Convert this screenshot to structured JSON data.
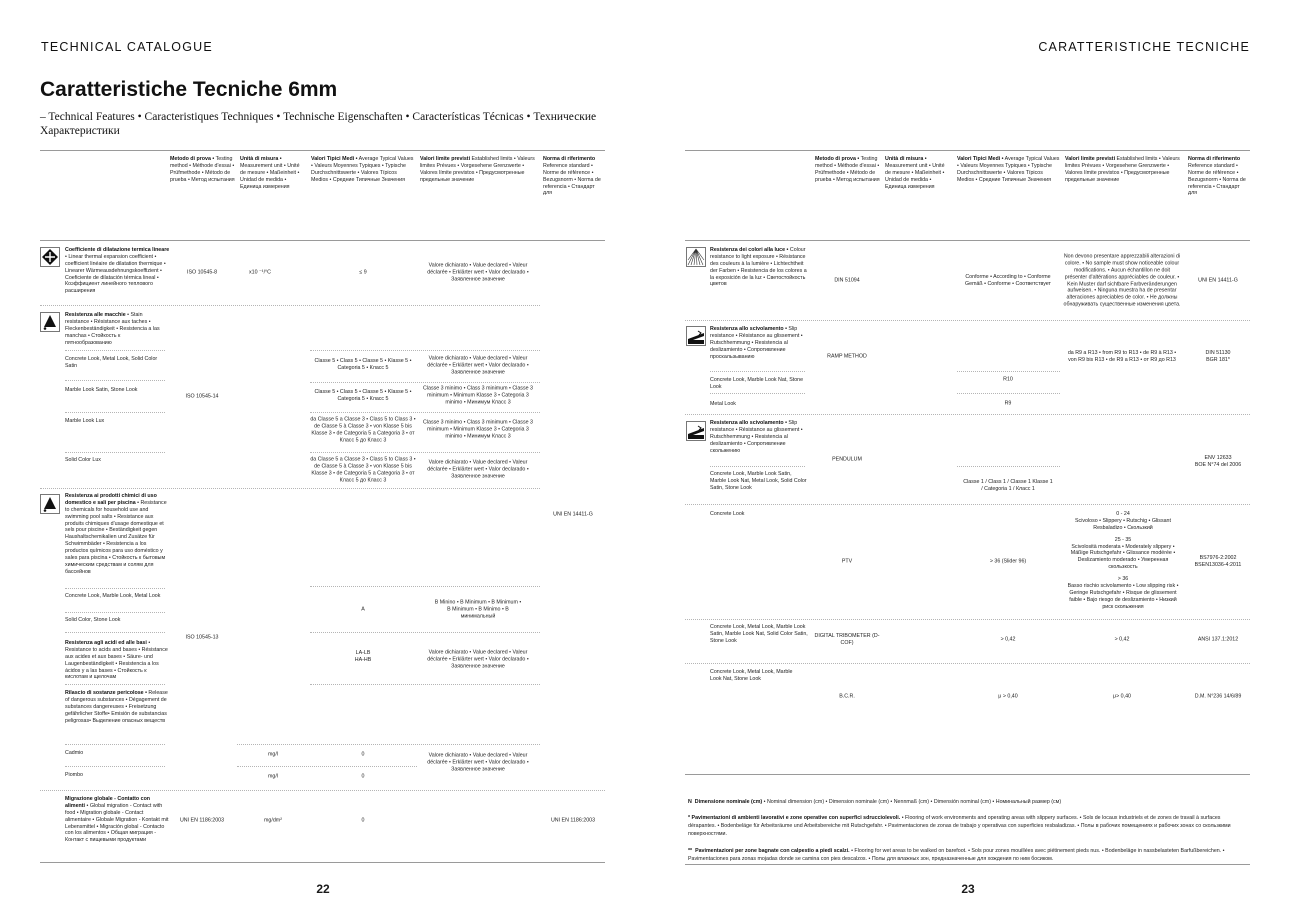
{
  "running": {
    "left": "TECHNICAL CATALOGUE",
    "right": "CARATTERISTICHE TECNICHE"
  },
  "title": "Caratteristiche Tecniche 6mm",
  "subtitle": "– Technical Features • Caracteristiques Techniques • Technische Eigenschaften • Características Técnicas • Технические Характеристики",
  "header": {
    "method": {
      "b": "Metodo di prova •",
      "t": " Testing method • Méthode d'essai • Prüfmethode • Método de prueba • Метод испытания"
    },
    "unit": {
      "b": "Unità di misura •",
      "t": " Measurement unit • Unité de mesure • Maßeinheit • Unidad de medida • Единица измерения"
    },
    "typical": {
      "b": "Valori Tipici Medi •",
      "t": " Average Typical Values • Valeurs Moyennes Typiques • Typische Durchschnittswerte • Valores Típicos Medios • Средние Типичные Значения"
    },
    "limits": {
      "b": "Valori limite previsti",
      "t": " Established limits • Valeurs limites Prévues • Vorgesehene Grenzwerte • Valores límite previstos • Предусмотренные предельные значение"
    },
    "norm": {
      "b": "Norma di riferimento",
      "t": " Reference standard • Norme de référence • Bezugsnorm • Norma de referencia • Стандарт для"
    }
  },
  "left": {
    "thermal": {
      "b": "Coefficiente di dilatazione termica lineare",
      "t": " • Linear thermal expansion coefficient • coefficient linéaire de dilatation thermique • Linearer Wärmeausdehnungskoeffizient • Coeficiente de dilatación térmica lineal • Коэффициент линейного теплового расширения",
      "method": "ISO 10545-8",
      "unit": "x10 ⁻¹/°C",
      "typical": "≤ 9",
      "limit": "Valore dichiarato • Value declared • Valeur déclarée • Erklärter wert • Valor declarado • Заявленное значение"
    },
    "stain": {
      "b": "Resistenza alle macchie",
      "t": " • Stain resistance • Résistance aux taches • Fleckenbeständigkeit • Resistencia a las manchas • Стойкость к пятнообразованию",
      "method": "ISO 10545-14",
      "rows": [
        {
          "label": "Concrete Look, Metal Look, Solid Color Satin",
          "typical": "Classe 5 • Class 5 • Classe 5 • Klasse 5 • Categoria 5 • Класс 5",
          "limit": "Valore dichiarato • Value declared • Valeur déclarée • Erklärter wert • Valor declarado • Заявленное значение"
        },
        {
          "label": "Marble Look Satin, Stone Look",
          "typical": "Classe 5 • Class 5 • Classe 5 • Klasse 5 • Categoria 5 • Класс 5",
          "limit": "Classe 3 minimo • Class 3 minimum • Classe 3 minimum • Minimum Klasse 3 • Categoria 3 minimo • Минимум Класс 3"
        },
        {
          "label": "Marble Look Lux",
          "typical": "da Classe 5 a Classe 3 • Class 5 to Class 3 • de Classe 5 à Classe 3 • von Klasse 5 bis Klasse 3 • de Categoria 5 a Categoria 3 • от Класс 5 до Класс 3",
          "limit": "Classe 3 minimo • Class 3 minimum • Classe 3 minimum • Minimum Klasse 3 • Categoria 3 minimo • Минимум Класс 3"
        },
        {
          "label": "Solid Color Lux",
          "typical": "da Classe 5 a Classe 3 • Class 5 to Class 3 • de Classe 5 à Classe 3 • von Klasse 5 bis Klasse 3 • de Categoria 5 a Categoria 3 • от Класс 5 до Класс 3",
          "limit": "Valore dichiarato • Value declared • Valeur déclarée • Erklärter wert • Valor declarado • Заявленное значение"
        }
      ]
    },
    "chem": {
      "b": "Resistenza ai prodotti chimici di uso domestico e sali per piscina",
      "t": " • Resistance to chemicals for household use and swimming pool salts • Resistance aux produits chimiques d'usage domestique et sels pour piscine • Beständigkeit gegen Haushaltschemikalien und Zusätze für Schwimmbäder • Resistencia a los productos químicos para uso doméstico y sales para piscina • Стойкость к бытовым химическим средствам и солям для бассейнов",
      "norm": "UNI EN 14411-G",
      "method": "ISO 10545-13",
      "row1": "Concrete Look, Marble Look, Metal Look",
      "row2": "Solid Color, Stone Look",
      "typical": "A",
      "limit": "B Minino • B Minimum • B Minimum • B Minimum • B Minimo • B минимальный"
    },
    "acid": {
      "b": "Resistenza agli acidi ed alle basi",
      "t": " • Resistance to acids and bases • Résistance aux acides et aux bases • Säure- und Laugenbeständigkeit • Resistencia a los ácidos y a las bases • Стойкость к кислотам и щелочам",
      "typical1": "LA-LB",
      "typical2": "HA-HB",
      "limit": "Valore dichiarato • Value declared • Valeur déclarée • Erklärter wert • Valor declarado • Заявленное значение"
    },
    "release": {
      "b": "Rilascio di sostanze pericolose •",
      "t": " Release of dangerous substances • Dégagement de substances dangereuses • Freisetzung gefährlicher Stoffe• Emisión de substancias peligrosas• Выделение опасных веществ",
      "cadmio": "Cadmio",
      "piombo": "Piombo",
      "unit": "mg/l",
      "value": "0",
      "limit": "Valore dichiarato • Value declared • Valeur déclarée • Erklärter wert • Valor declarado • Заявленное значение"
    },
    "migration": {
      "b": "Migrazione globale - Contatto con alimenti",
      "t": " • Global migration - Contact with food • Migration globale - Contact alimentaire • Globale Migration - Kontakt mit Lebensmittel • Migración global - Contacto con los alimentos • Общая миграция - Контакт с пищевыми продуктами",
      "method": "UNI EN 1186:2003",
      "unit": "mg/dm²",
      "typical": "0",
      "norm": "UNI EN 1186:2003"
    },
    "page": "22"
  },
  "right": {
    "light": {
      "b": "Resistenza dei colori alla luce •",
      "t": " Colour resistance to light exposure • Résistance des couleurs à la lumière • Lichtechtheit der Farben • Resistencia de los colores a la exposición de la luz • Светостойкость цветов",
      "method": "DIN 51094",
      "typical": "Conforme • According to • Conforme Gemäß • Conforme • Соответствует",
      "limit": "Non devono presentare apprezzabili alterazioni di colore. • No sample must show noticeable colour modifications. • Aucun échantillon ne doit présenter d'altérations appréciables de couleur. • Kein Muster darf sichtbare Farbveränderungen aufweisen. • Ninguna muestra ha de presentar alteraciones apreciables de color. • Не должны обнаруживать существенные изменения цвета.",
      "norm": "UNI EN 14411-G"
    },
    "ramp": {
      "b": "Resistenza allo scivolamento •",
      "t": " Slip resistance • Résistance au glissement • Rutschhemmung • Resistencia al deslizamiento • Сопротивление проскальзыванию",
      "method": "RAMP METHOD",
      "limit": "da R9 a R13 • from R9 to R13 • de R9 à R13 • von R9 bis R13 • de R9 a R13 • от R9 до R13",
      "norm1": "DIN 51130",
      "norm2": "BGR 181*",
      "rows": [
        {
          "label": "Concrete Look, Marble Look Nat, Stone Look",
          "typical": "R10"
        },
        {
          "label": "Metal Look",
          "typical": "R9"
        }
      ]
    },
    "pendulum": {
      "b": "Resistenza allo scivolamento •",
      "t": " Slip resistance • Résistance au glissement • Rutschhemmung • Resistencia al deslizamiento • Сопротивление скольжению",
      "method": "PENDULUM",
      "norm1": "ENV 12633",
      "norm2": "BOE N°74 del 2006",
      "label": "Concrete Look, Marble Look Satin, Marble Look Nat, Metal Look, Solid Color Satin, Stone Look",
      "typical": "Classe 1 / Class 1 / Classe 1 Klasse 1 / Categoria 1 / Класс 1"
    },
    "ptv": {
      "label": "Concrete Look",
      "method": "PTV",
      "typical": "> 36 (Slider 96)",
      "norm1": "BS7976-2:2002",
      "norm2": "BSEN13036-4:2011",
      "ranges": [
        {
          "r": "0 - 24",
          "t": "Scivoloso • Slippery • Rutschig • Glissant Resbaladizo • Скользкий"
        },
        {
          "r": "25 - 35",
          "t": "Scivolosità moderata • Moderately slippery • Mäßige Rutschgefahr • Glissance modérée • Deslizamiento moderado • Умеренная скользкость"
        },
        {
          "r": "> 36",
          "t": "Basso rischio scivolamento • Low slipping risk • Geringe Rutschgefahr • Risque de glissement faible • Bajo riesgo de deslizamiento • Низкий риск скольжения"
        }
      ]
    },
    "tribo": {
      "label": "Concrete Look, Metal Look, Marble Look Satin, Marble Look Nat, Solid Color Satin, Stone Look",
      "method": "DIGITAL TRIBOMETER (D-COF)",
      "typical": "> 0,42",
      "limit": "> 0,42",
      "norm": "ANSI 137.1:2012"
    },
    "bcr": {
      "label": "Concrete Look, Metal Look, Marble Look Nat, Stone Look",
      "method": "B.C.R.",
      "typical": "μ > 0,40",
      "limit": "μ> 0,40",
      "norm": "D.M. N°236 14/6/89"
    },
    "notes": {
      "n": {
        "k": "N",
        "b": "Dimensione nominale (cm)",
        "t": " • Nominal dimension (cm) • Dimension nominale (cm) • Nennmaß (cm) • Dimensión nominal (cm) • Номинальный размер (см)"
      },
      "s1": {
        "k": "*",
        "b": "Pavimentazioni di ambienti lavorativi e zone operative con superfici sdrucciolevoli.",
        "t": " • Flooring of work environments and operating areas with slippery surfaces. • Sols de locaux industriels et de zones de travail à surfaces dérapantes. • Bodenbeläge für Arbeitsräume und Arbeitsbereiche mit Rutschgefahr. • Pavimentaciones de zonas de trabajo y operativas con superficies resbaladizas. • Полы в рабочих помещениях и рабочих зонах со скользкими поверхностями."
      },
      "s2": {
        "k": "**",
        "b": "Pavimentazioni per zone bagnate con calpestio a piedi scalzi.",
        "t": " • Flooring for wet areas to be walked on barefoot. • Sols pour zones mouillées avec piétinement pieds nus. • Bodenbeläge in nassbelasteten Barfußbereichen. • Pavimentaciones para zonas mojadas donde se camina con pies descalzos. • Полы для влажных зон, предназначенные для хождения по ним босиком."
      }
    },
    "page": "23"
  }
}
